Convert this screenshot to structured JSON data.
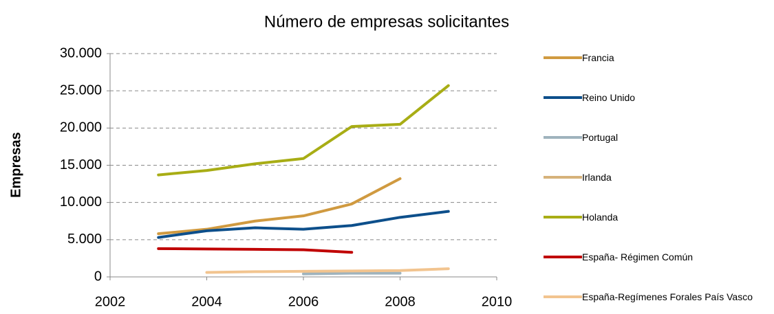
{
  "chart_data": {
    "type": "line",
    "title": "Número de empresas solicitantes",
    "y_label": "Empresas",
    "x": [
      2003,
      2004,
      2005,
      2006,
      2007,
      2008,
      2009
    ],
    "series": [
      {
        "name": "Francia",
        "color": "#d09a40",
        "values": [
          5800,
          6400,
          7500,
          8200,
          9800,
          13200,
          null
        ]
      },
      {
        "name": "Reino Unido",
        "color": "#0d4f8b",
        "values": [
          5300,
          6200,
          6600,
          6400,
          6900,
          8000,
          8800
        ]
      },
      {
        "name": "Portugal",
        "color": "#9fb3bd",
        "values": [
          null,
          null,
          null,
          400,
          500,
          500,
          null
        ]
      },
      {
        "name": "Irlanda",
        "color": "#d6b27a",
        "values": [
          null,
          null,
          null,
          null,
          null,
          null,
          null
        ]
      },
      {
        "name": "Holanda",
        "color": "#a8ad15",
        "values": [
          13700,
          14300,
          15200,
          15900,
          20200,
          20500,
          25700
        ]
      },
      {
        "name": "España- Régimen Común",
        "color": "#c00000",
        "values": [
          3800,
          3750,
          3700,
          3650,
          3300,
          null,
          null
        ]
      },
      {
        "name": "España-Regímenes Forales País Vasco",
        "color": "#f2c48f",
        "values": [
          null,
          600,
          700,
          750,
          800,
          850,
          1100
        ]
      }
    ],
    "xlim": [
      2002,
      2010
    ],
    "xticks": [
      2002,
      2004,
      2006,
      2008,
      2010
    ],
    "ylim": [
      0,
      30000
    ],
    "yticks": [
      0,
      {
        "value": 5000,
        "label": "5.000"
      },
      {
        "value": 10000,
        "label": "10.000"
      },
      {
        "value": 15000,
        "label": "15.000"
      },
      {
        "value": 20000,
        "label": "20.000"
      },
      {
        "value": 25000,
        "label": "25.000"
      },
      {
        "value": 30000,
        "label": "30.000"
      }
    ],
    "grid": true,
    "legend": "right"
  }
}
